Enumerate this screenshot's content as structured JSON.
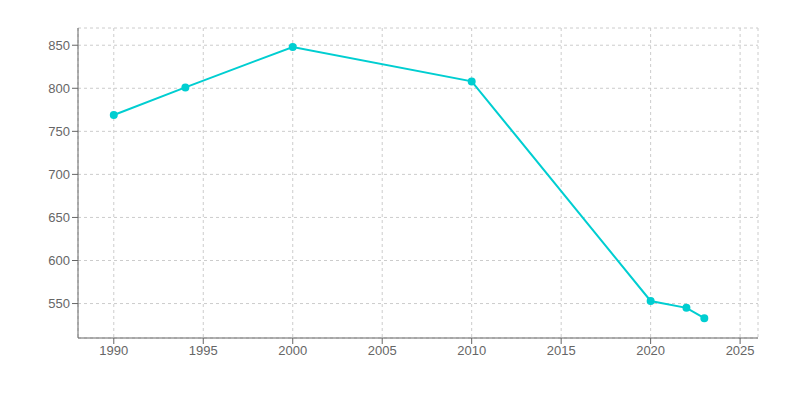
{
  "chart_data": {
    "type": "line",
    "x": [
      1990,
      1994,
      2000,
      2010,
      2020,
      2022,
      2023
    ],
    "values": [
      769,
      801,
      848,
      808,
      553,
      545,
      533
    ],
    "color": "#00CED1",
    "marker": "circle",
    "xlim": [
      1988,
      2026
    ],
    "ylim": [
      510,
      870
    ],
    "xticks": [
      1990,
      1995,
      2000,
      2005,
      2010,
      2015,
      2020,
      2025
    ],
    "yticks": [
      550,
      600,
      650,
      700,
      750,
      800,
      850
    ],
    "grid": true
  }
}
